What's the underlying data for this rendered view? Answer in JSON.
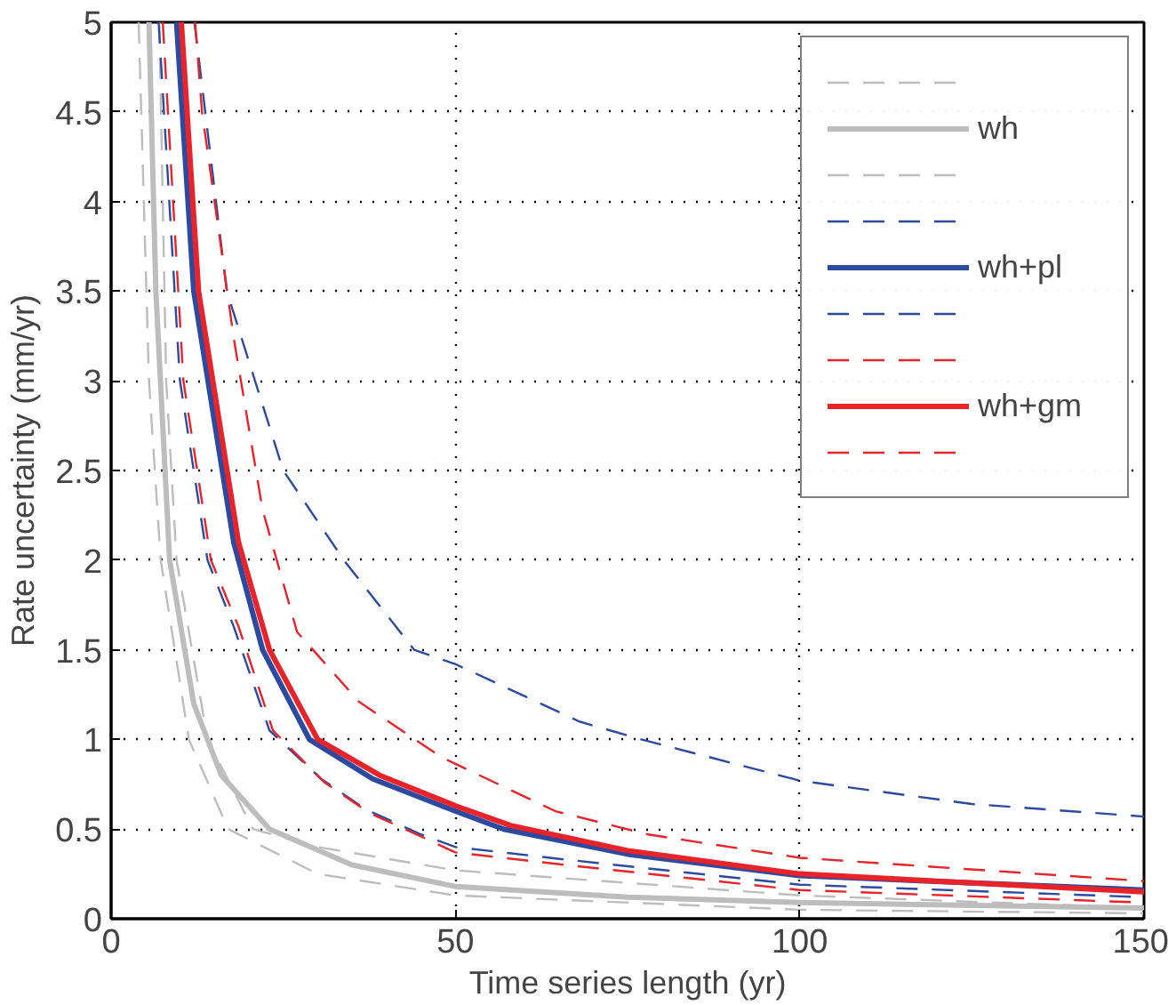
{
  "chart_data": {
    "type": "line",
    "xlabel": "Time series length (yr)",
    "ylabel": "Rate uncertainty (mm/yr)",
    "xlim": [
      0,
      150
    ],
    "ylim": [
      0,
      5
    ],
    "xticks": [
      0,
      50,
      100,
      150
    ],
    "yticks": [
      0,
      0.5,
      1,
      1.5,
      2,
      2.5,
      3,
      3.5,
      4,
      4.5,
      5
    ],
    "grid": true,
    "legend": "top right",
    "marker": "none",
    "series": [
      {
        "color": "#bdbdbd",
        "line_style": "dashed",
        "x": [
          7,
          8,
          9.5,
          14,
          20.6,
          30,
          50,
          100,
          150
        ],
        "values": [
          5,
          3,
          2,
          1,
          0.5,
          0.4,
          0.27,
          0.13,
          0.06
        ]
      },
      {
        "name": "wh",
        "color": "#bdbdbd",
        "line_style": "solid",
        "x": [
          5.5,
          6.5,
          8.5,
          12,
          16,
          23,
          35,
          50,
          75,
          100,
          150
        ],
        "values": [
          5,
          3.5,
          2,
          1.2,
          0.8,
          0.5,
          0.3,
          0.18,
          0.12,
          0.09,
          0.06
        ]
      },
      {
        "color": "#bdbdbd",
        "line_style": "dashed",
        "x": [
          4,
          5.5,
          7.2,
          11.3,
          17,
          30,
          50,
          100,
          150
        ],
        "values": [
          5,
          3,
          2,
          1,
          0.5,
          0.25,
          0.13,
          0.05,
          0.03
        ]
      },
      {
        "color": "#2b4aa0",
        "line_style": "dashed",
        "x": [
          12.1,
          16.8,
          25,
          33.8,
          44,
          50,
          68,
          77,
          100,
          125,
          150
        ],
        "values": [
          5,
          3.5,
          2.5,
          2,
          1.5,
          1.42,
          1.1,
          1,
          0.77,
          0.64,
          0.57
        ]
      },
      {
        "name": "wh+pl",
        "color": "#2b4aa0",
        "line_style": "solid",
        "x": [
          9.5,
          12,
          17.8,
          22,
          28.8,
          38,
          50,
          57,
          75,
          100,
          150
        ],
        "values": [
          5,
          3.5,
          2.1,
          1.5,
          1,
          0.78,
          0.6,
          0.5,
          0.36,
          0.24,
          0.16
        ]
      },
      {
        "color": "#2b4aa0",
        "line_style": "dashed",
        "x": [
          6.9,
          10,
          14,
          17.8,
          23,
          30.5,
          37,
          45,
          50,
          66,
          100,
          150
        ],
        "values": [
          5,
          3,
          2,
          1.63,
          1.05,
          0.78,
          0.61,
          0.47,
          0.4,
          0.33,
          0.19,
          0.12
        ]
      },
      {
        "color": "#e8232a",
        "line_style": "dashed",
        "x": [
          12.2,
          13.2,
          17.8,
          22,
          27,
          36,
          48,
          64.5,
          78,
          100,
          150
        ],
        "values": [
          5,
          4.5,
          3.24,
          2.28,
          1.6,
          1.21,
          0.9,
          0.6,
          0.47,
          0.34,
          0.21
        ]
      },
      {
        "name": "wh+gm",
        "color": "#e8232a",
        "line_style": "solid",
        "x": [
          10.2,
          12.7,
          18.5,
          23,
          30,
          39,
          50,
          58,
          75,
          100,
          150
        ],
        "values": [
          5,
          3.5,
          2.1,
          1.5,
          1,
          0.8,
          0.63,
          0.52,
          0.38,
          0.25,
          0.15
        ]
      },
      {
        "color": "#e8232a",
        "line_style": "dashed",
        "x": [
          7.5,
          10.5,
          14.5,
          18.5,
          23.5,
          31,
          37.5,
          45.5,
          50,
          66,
          100,
          150
        ],
        "values": [
          5,
          3,
          2,
          1.63,
          1.05,
          0.76,
          0.59,
          0.45,
          0.37,
          0.3,
          0.16,
          0.09
        ]
      }
    ]
  }
}
